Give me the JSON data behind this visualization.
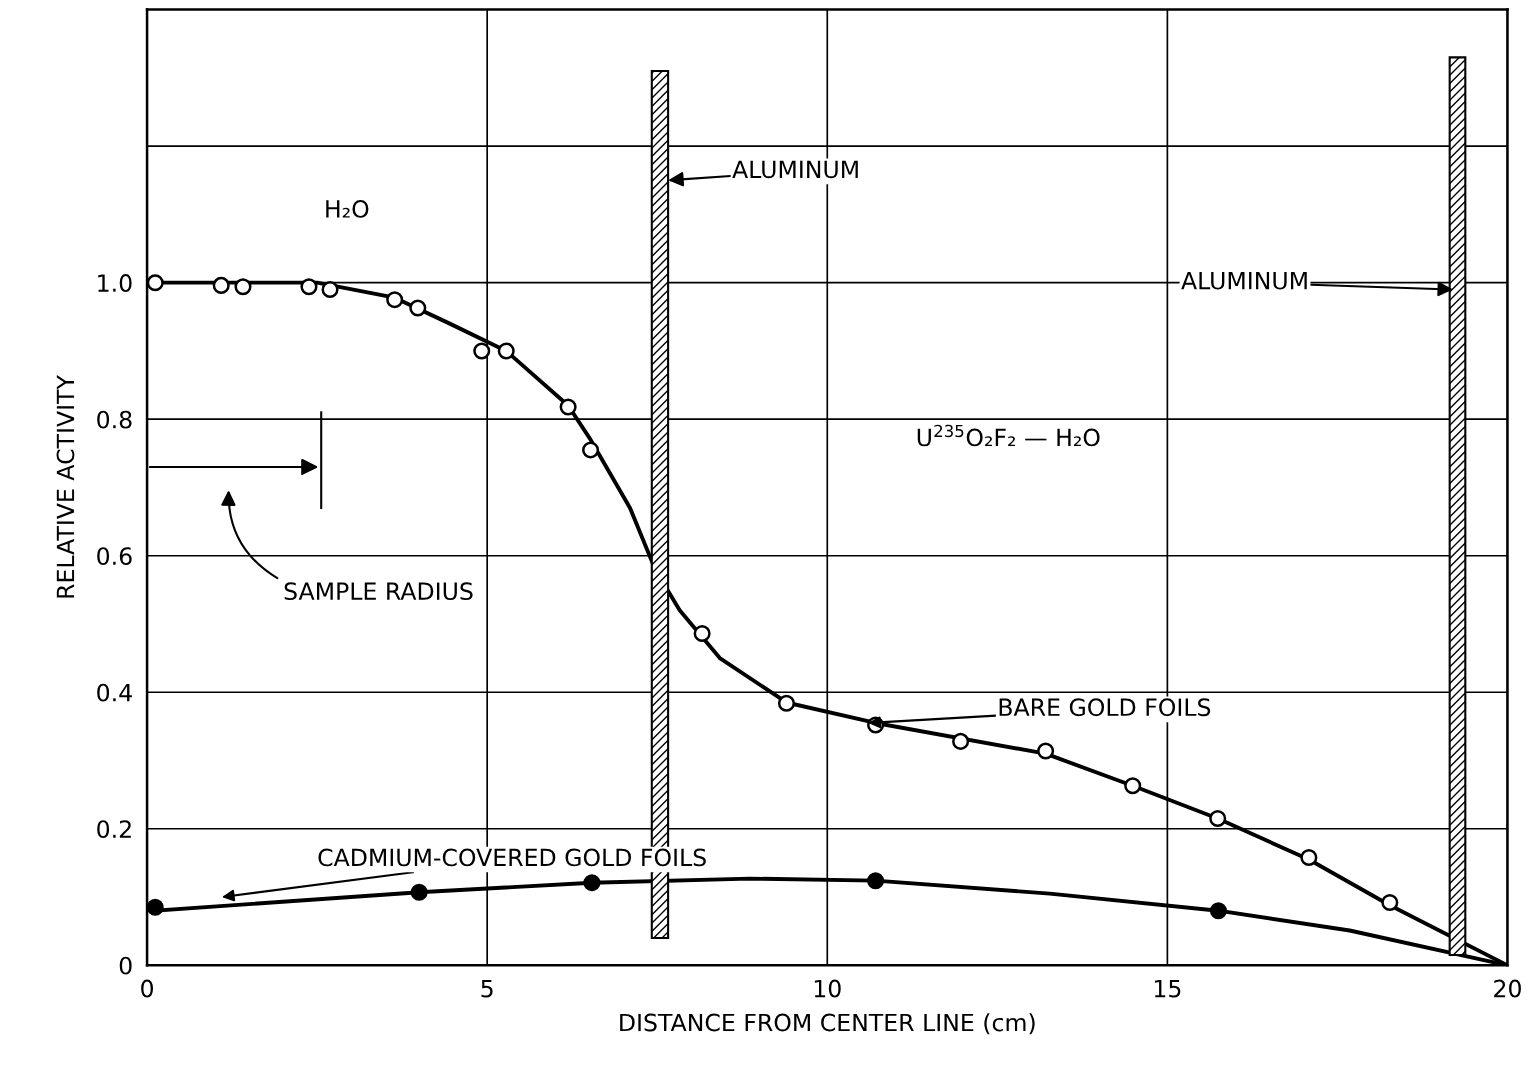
{
  "chart_data": {
    "type": "line",
    "xlabel": "DISTANCE FROM CENTER LINE (cm)",
    "ylabel": "RELATIVE ACTIVITY",
    "xlim": [
      0,
      20
    ],
    "ylim": [
      0,
      1.4
    ],
    "xticks": [
      0,
      5,
      10,
      15,
      20
    ],
    "yticks": [
      0,
      0.2,
      0.4,
      0.6,
      0.8,
      {
        "value": 1.0,
        "label": "1.0"
      },
      {
        "value": 1.2,
        "label": null
      }
    ],
    "grid": true,
    "legend": false,
    "series": [
      {
        "name": "BARE GOLD FOILS",
        "color": "#000000",
        "x": [
          0,
          2.5,
          3.64,
          4.45,
          5.28,
          6.19,
          6.52,
          7.1,
          7.47,
          7.83,
          8.42,
          9.4,
          10.71,
          13.21,
          14.49,
          15.74,
          17.08,
          18.27,
          20
        ],
        "values": [
          1.0,
          1.0,
          0.978,
          0.94,
          0.9,
          0.82,
          0.77,
          0.67,
          0.58,
          0.52,
          0.45,
          0.385,
          0.355,
          0.31,
          0.263,
          0.215,
          0.155,
          0.088,
          0
        ]
      },
      {
        "type": "scatter",
        "marker": "circle",
        "color": "#ffffff",
        "x": [
          0.12,
          1.09,
          1.41,
          2.38,
          2.69,
          3.64,
          3.98,
          4.92,
          5.28,
          6.19,
          6.52,
          8.16,
          9.4,
          10.71,
          11.96,
          13.21,
          14.49,
          15.74,
          17.08,
          18.27
        ],
        "values": [
          1.0,
          0.996,
          0.994,
          0.994,
          0.99,
          0.975,
          0.963,
          0.9,
          0.9,
          0.818,
          0.755,
          0.486,
          0.384,
          0.352,
          0.328,
          0.314,
          0.263,
          0.215,
          0.158,
          0.092
        ]
      },
      {
        "name": "CADMIUM-COVERED GOLD FOILS",
        "color": "#000000",
        "x": [
          0.12,
          4.0,
          6.54,
          8.86,
          10.71,
          13.27,
          15.75,
          17.68,
          20
        ],
        "values": [
          0.08,
          0.107,
          0.121,
          0.127,
          0.124,
          0.105,
          0.08,
          0.051,
          0
        ]
      },
      {
        "type": "scatter",
        "marker": "circle",
        "color": "#000000",
        "x": [
          0.12,
          4.0,
          6.54,
          10.71,
          15.75
        ],
        "values": [
          0.085,
          0.107,
          0.121,
          0.124,
          0.08
        ]
      }
    ],
    "bands": [
      {
        "axis": "x",
        "from": 7.42,
        "to": 7.66
      },
      {
        "axis": "x",
        "from": 19.15,
        "to": 19.38
      }
    ],
    "ref_lines": [
      {
        "axis": "x",
        "value": 2.56
      }
    ],
    "annotations": [
      {
        "text": "ALUMINUM",
        "x": 7.66,
        "y": 1.15
      },
      {
        "text": "ALUMINUM",
        "x": 19.2,
        "y": 0.99
      },
      "H₂O",
      "U$^{235}$O₂F₂ — H₂O",
      "SAMPLE RADIUS"
    ]
  }
}
